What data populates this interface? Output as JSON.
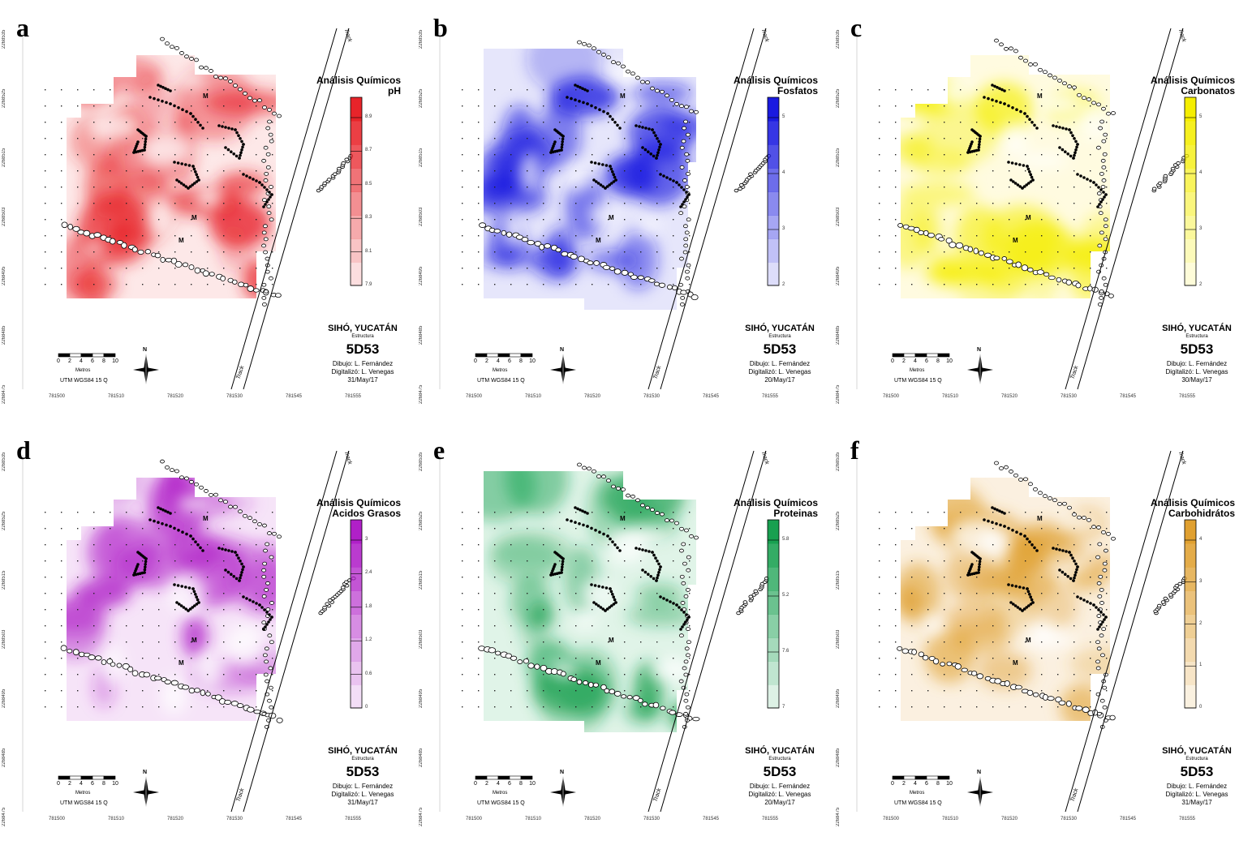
{
  "panels": [
    {
      "letter": "a",
      "title_line1": "Análisis Químicos",
      "title_line2": "pH",
      "legend_ticks": [
        "8.9",
        "8.7",
        "8.5",
        "8.3",
        "8.1",
        "7.9"
      ],
      "colors": {
        "dark": "#e8242a",
        "light": "#fde8e8"
      },
      "date": "31/May/17"
    },
    {
      "letter": "b",
      "title_line1": "Análisis Químicos",
      "title_line2": "Fosfatos",
      "legend_ticks": [
        "5",
        "4",
        "3",
        "2"
      ],
      "colors": {
        "dark": "#1a1ae0",
        "light": "#e6e6fb"
      },
      "date": "20/May/17"
    },
    {
      "letter": "c",
      "title_line1": "Análisis Químicos",
      "title_line2": "Carbonatos",
      "legend_ticks": [
        "5",
        "4",
        "3",
        "2"
      ],
      "colors": {
        "dark": "#f5ee00",
        "light": "#fffbe0"
      },
      "date": "30/May/17"
    },
    {
      "letter": "d",
      "title_line1": "Análisis Químicos",
      "title_line2": "Acidos Grasos",
      "legend_ticks": [
        "3",
        "2.4",
        "1.8",
        "1.2",
        "0.6",
        "0"
      ],
      "colors": {
        "dark": "#b020c8",
        "light": "#f6e4f8"
      },
      "date": "31/May/17"
    },
    {
      "letter": "e",
      "title_line1": "Análisis Químicos",
      "title_line2": "Proteinas",
      "legend_ticks": [
        "5.8",
        "5.2",
        "7.6",
        "7"
      ],
      "colors": {
        "dark": "#18a050",
        "light": "#e0f4e8"
      },
      "date": "20/May/17"
    },
    {
      "letter": "f",
      "title_line1": "Análisis Químicos",
      "title_line2": "Carbohidrátos",
      "legend_ticks": [
        "4",
        "3",
        "2",
        "1",
        "0"
      ],
      "colors": {
        "dark": "#e0a030",
        "light": "#fbf0e0"
      },
      "date": "31/May/17"
    }
  ],
  "common": {
    "site": "SIHÓ, YUCATÁN",
    "structure_label": "Estructura",
    "structure_code": "5D53",
    "credit_drawing": "Dibujo: L. Fernández",
    "credit_digitized": "Digitalizó: L. Venegas",
    "scale_numbers": [
      "0",
      "2",
      "4",
      "6",
      "8",
      "10"
    ],
    "scale_unit": "Metros",
    "projection": "UTM WGS84 15 Q",
    "north": "N",
    "mound_label": "M",
    "track_label": "Track",
    "y_ticks": [
      "2268535",
      "2268525",
      "2268515",
      "2268503",
      "2268495",
      "2268485",
      "2268475"
    ],
    "x_ticks": [
      "781500",
      "781510",
      "781520",
      "781530",
      "781545",
      "781555"
    ]
  }
}
